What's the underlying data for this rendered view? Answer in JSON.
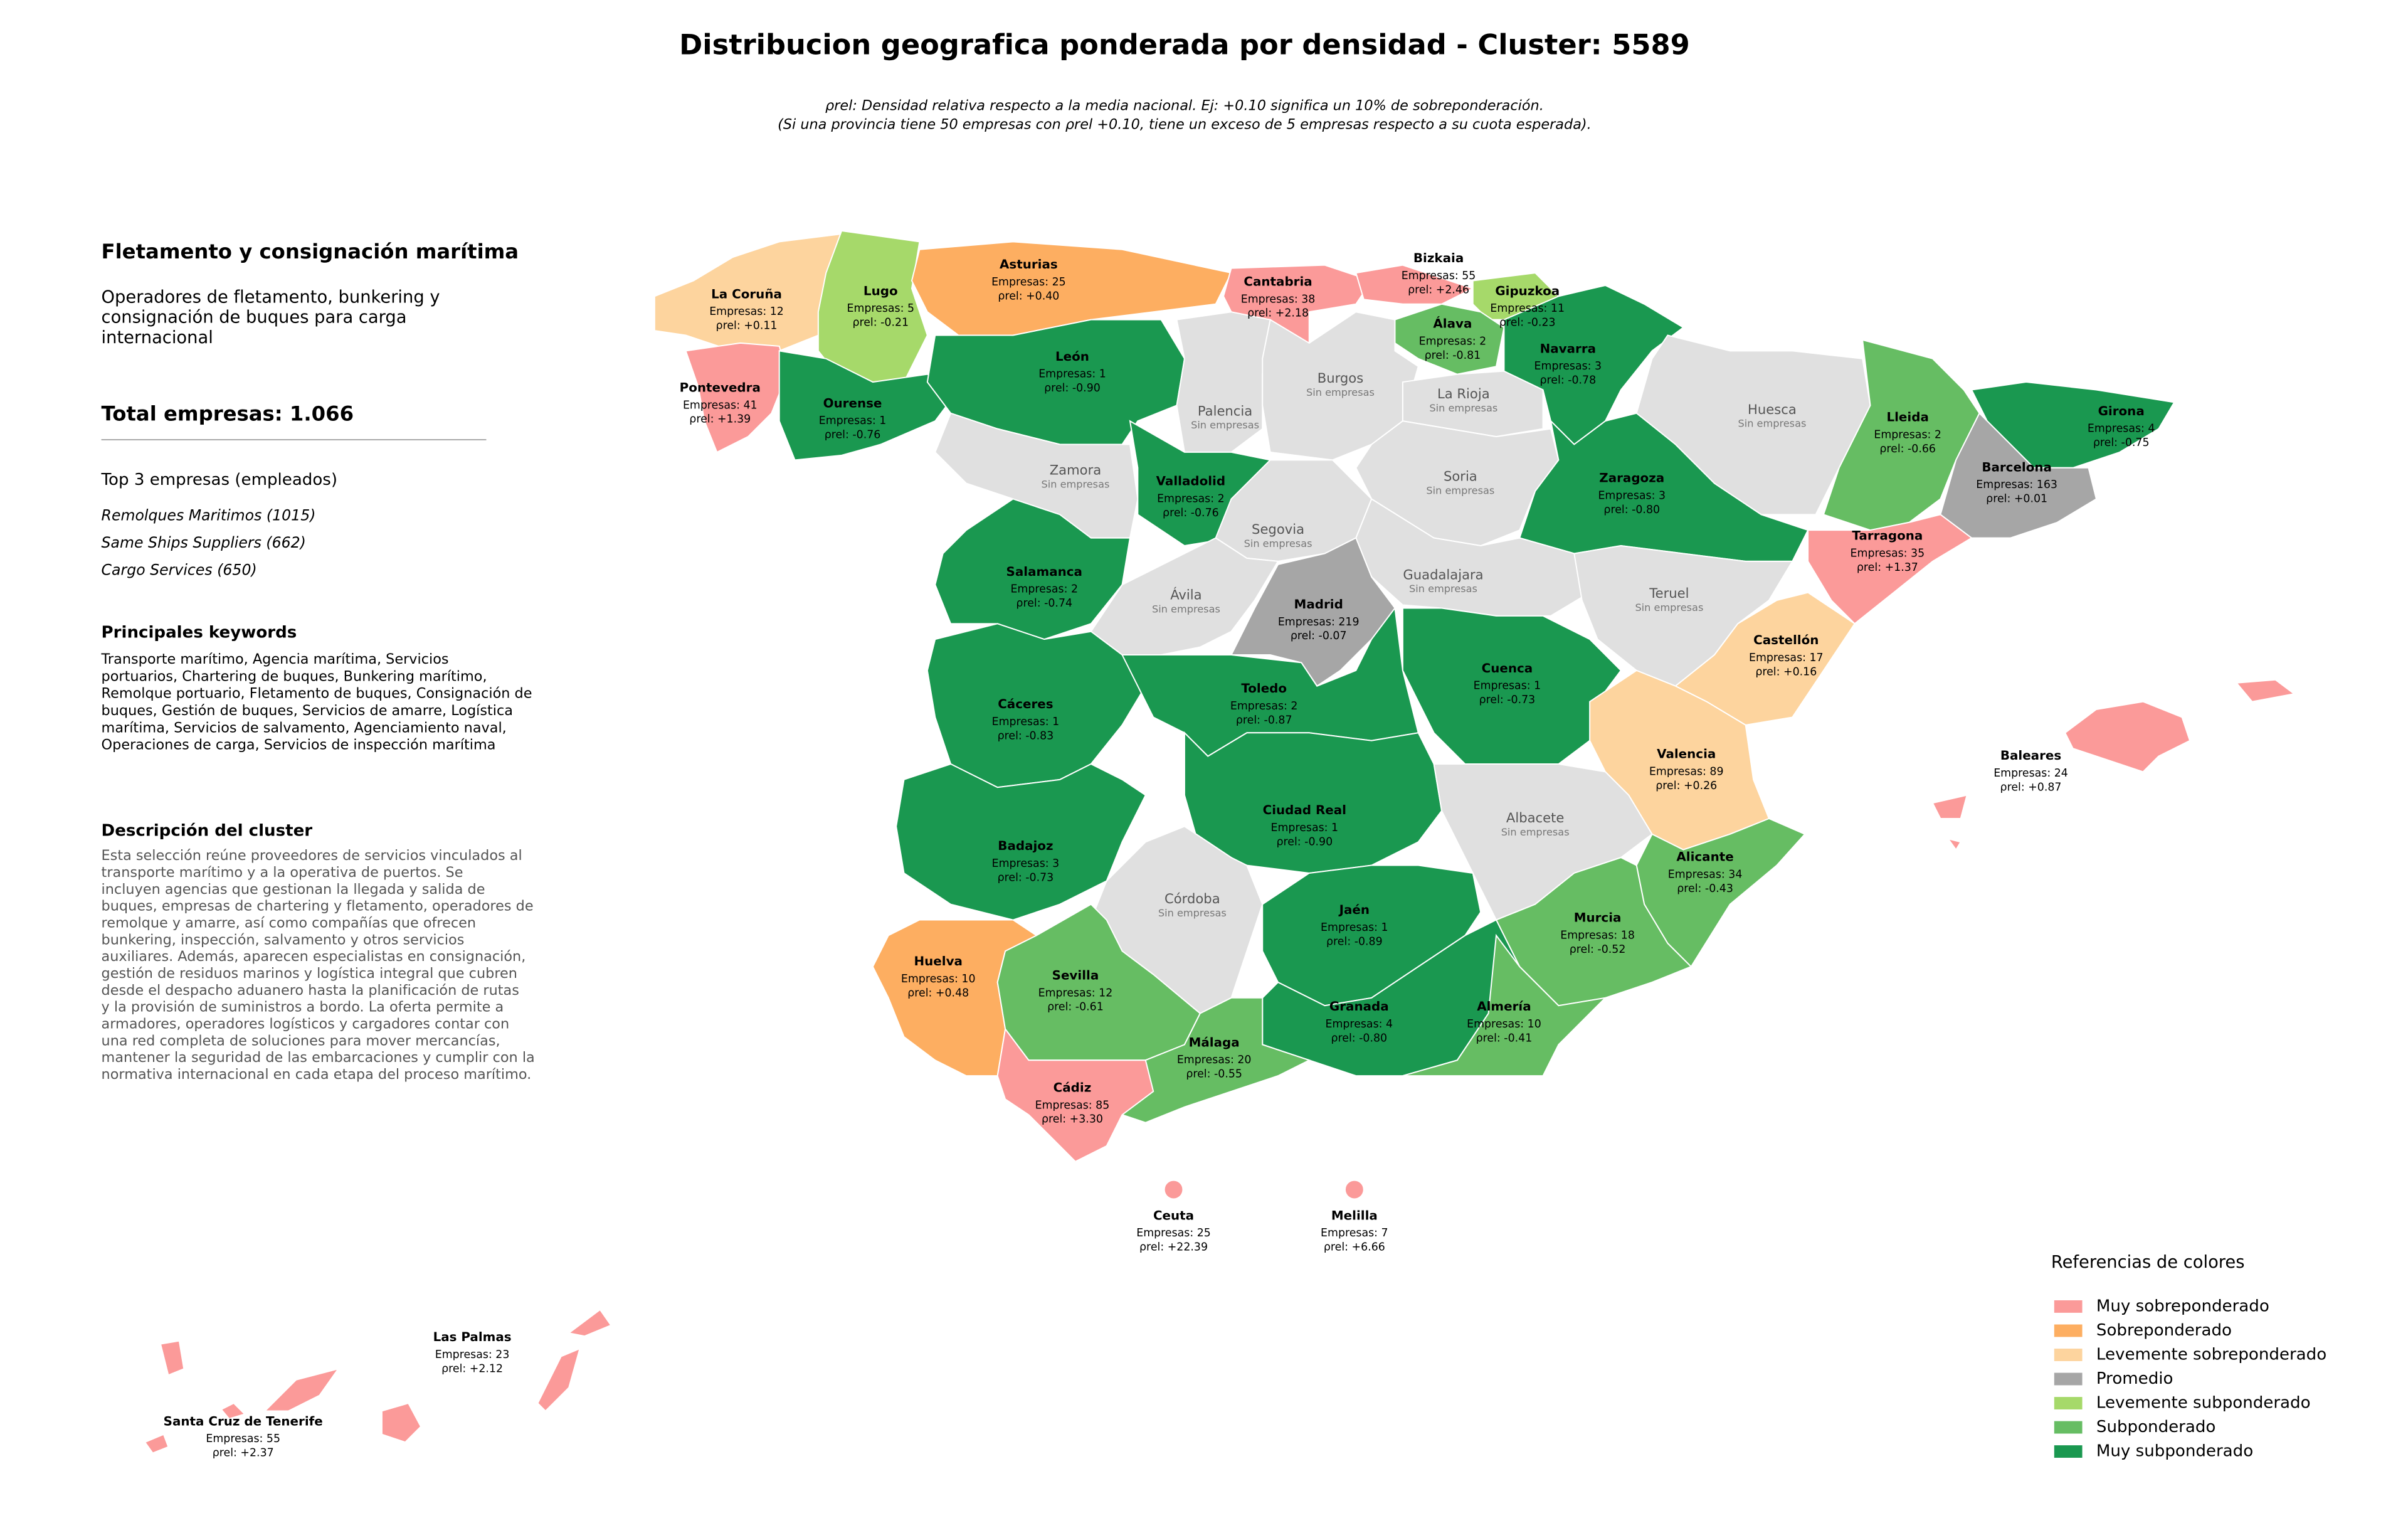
{
  "title": "Distribucion geografica ponderada por densidad - Cluster: 5589",
  "subtitle": [
    "ρrel: Densidad relativa respecto a la media nacional. Ej: +0.10 significa un 10% de sobreponderación.",
    "(Si una provincia tiene 50 empresas con ρrel +0.10, tiene un exceso de 5 empresas respecto a su cuota esperada)."
  ],
  "panel": {
    "heading": "Fletamento y consignación marítima",
    "summary": [
      "Operadores de fletamento, bunkering y",
      "consignación de buques para carga",
      "internacional"
    ],
    "total": "Total empresas: 1.066",
    "top_title": "Top 3 empresas (empleados)",
    "top": [
      "Remolques Maritimos (1015)",
      "Same Ships Suppliers (662)",
      "Cargo Services (650)"
    ],
    "keywords_title": "Principales keywords",
    "keywords": [
      "Transporte marítimo, Agencia marítima, Servicios",
      "portuarios, Chartering de buques, Bunkering marítimo,",
      "Remolque portuario, Fletamento de buques, Consignación de",
      "buques, Gestión de buques, Servicios de amarre, Logística",
      "marítima, Servicios de salvamento, Agenciamiento naval,",
      "Operaciones de carga, Servicios de inspección marítima"
    ],
    "description_title": "Descripción del cluster",
    "description": [
      "Esta selección reúne proveedores de servicios vinculados al",
      "transporte marítimo y a la operativa de puertos. Se",
      "incluyen agencias que gestionan la llegada y salida de",
      "buques, empresas de chartering y fletamento, operadores de",
      "remolque y amarre, así como compañías que ofrecen",
      "bunkering, inspección, salvamento y otros servicios",
      "auxiliares. Además, aparecen especialistas en consignación,",
      "gestión de residuos marinos y logística integral que cubren",
      "desde el despacho aduanero hasta la planificación de rutas",
      "y la provisión de suministros a bordo. La oferta permite a",
      "armadores, operadores logísticos y cargadores contar con",
      "una red completa de soluciones para mover mercancías,",
      "mantener la seguridad de las embarcaciones y cumplir con la",
      "normativa internacional en cada etapa del proceso marítimo."
    ]
  },
  "provinces": [
    {
      "name": "La Coruña",
      "empresas": "Empresas: 12",
      "rho": "ρrel: +0.11",
      "color": "#fdd49e"
    },
    {
      "name": "Lugo",
      "empresas": "Empresas: 5",
      "rho": "ρrel: -0.21",
      "color": "#a6d96a"
    },
    {
      "name": "Asturias",
      "empresas": "Empresas: 25",
      "rho": "ρrel: +0.40",
      "color": "#fdae61"
    },
    {
      "name": "Cantabria",
      "empresas": "Empresas: 38",
      "rho": "ρrel: +2.18",
      "color": "#fb9a99"
    },
    {
      "name": "Bizkaia",
      "empresas": "Empresas: 55",
      "rho": "ρrel: +2.46",
      "color": "#fb9a99"
    },
    {
      "name": "Gipuzkoa",
      "empresas": "Empresas: 11",
      "rho": "ρrel: -0.23",
      "color": "#a6d96a"
    },
    {
      "name": "Álava",
      "empresas": "Empresas: 2",
      "rho": "ρrel: -0.81",
      "color": "#66bd63"
    },
    {
      "name": "Pontevedra",
      "empresas": "Empresas: 41",
      "rho": "ρrel: +1.39",
      "color": "#fb9a99"
    },
    {
      "name": "Ourense",
      "empresas": "Empresas: 1",
      "rho": "ρrel: -0.76",
      "color": "#1a9850"
    },
    {
      "name": "León",
      "empresas": "Empresas: 1",
      "rho": "ρrel: -0.90",
      "color": "#1a9850"
    },
    {
      "name": "Palencia",
      "note": "Sin empresas",
      "color": "#e0e0e0"
    },
    {
      "name": "Burgos",
      "note": "Sin empresas",
      "color": "#e0e0e0"
    },
    {
      "name": "La Rioja",
      "note": "Sin empresas",
      "color": "#e0e0e0"
    },
    {
      "name": "Navarra",
      "empresas": "Empresas: 3",
      "rho": "ρrel: -0.78",
      "color": "#1a9850"
    },
    {
      "name": "Huesca",
      "note": "Sin empresas",
      "color": "#e0e0e0"
    },
    {
      "name": "Lleida",
      "empresas": "Empresas: 2",
      "rho": "ρrel: -0.66",
      "color": "#66bd63"
    },
    {
      "name": "Girona",
      "empresas": "Empresas: 4",
      "rho": "ρrel: -0.75",
      "color": "#1a9850"
    },
    {
      "name": "Barcelona",
      "empresas": "Empresas: 163",
      "rho": "ρrel: +0.01",
      "color": "#a6a6a6"
    },
    {
      "name": "Zamora",
      "note": "Sin empresas",
      "color": "#e0e0e0"
    },
    {
      "name": "Valladolid",
      "empresas": "Empresas: 2",
      "rho": "ρrel: -0.76",
      "color": "#1a9850"
    },
    {
      "name": "Soria",
      "note": "Sin empresas",
      "color": "#e0e0e0"
    },
    {
      "name": "Zaragoza",
      "empresas": "Empresas: 3",
      "rho": "ρrel: -0.80",
      "color": "#1a9850"
    },
    {
      "name": "Tarragona",
      "empresas": "Empresas: 35",
      "rho": "ρrel: +1.37",
      "color": "#fb9a99"
    },
    {
      "name": "Segovia",
      "note": "Sin empresas",
      "color": "#e0e0e0"
    },
    {
      "name": "Salamanca",
      "empresas": "Empresas: 2",
      "rho": "ρrel: -0.74",
      "color": "#1a9850"
    },
    {
      "name": "Ávila",
      "note": "Sin empresas",
      "color": "#e0e0e0"
    },
    {
      "name": "Guadalajara",
      "note": "Sin empresas",
      "color": "#e0e0e0"
    },
    {
      "name": "Madrid",
      "empresas": "Empresas: 219",
      "rho": "ρrel: -0.07",
      "color": "#a6a6a6"
    },
    {
      "name": "Teruel",
      "note": "Sin empresas",
      "color": "#e0e0e0"
    },
    {
      "name": "Castellón",
      "empresas": "Empresas: 17",
      "rho": "ρrel: +0.16",
      "color": "#fdd49e"
    },
    {
      "name": "Cáceres",
      "empresas": "Empresas: 1",
      "rho": "ρrel: -0.83",
      "color": "#1a9850"
    },
    {
      "name": "Toledo",
      "empresas": "Empresas: 2",
      "rho": "ρrel: -0.87",
      "color": "#1a9850"
    },
    {
      "name": "Cuenca",
      "empresas": "Empresas: 1",
      "rho": "ρrel: -0.73",
      "color": "#1a9850"
    },
    {
      "name": "Valencia",
      "empresas": "Empresas: 89",
      "rho": "ρrel: +0.26",
      "color": "#fdd49e"
    },
    {
      "name": "Baleares",
      "empresas": "Empresas: 24",
      "rho": "ρrel: +0.87",
      "color": "#fb9a99"
    },
    {
      "name": "Ciudad Real",
      "empresas": "Empresas: 1",
      "rho": "ρrel: -0.90",
      "color": "#1a9850"
    },
    {
      "name": "Albacete",
      "note": "Sin empresas",
      "color": "#e0e0e0"
    },
    {
      "name": "Badajoz",
      "empresas": "Empresas: 3",
      "rho": "ρrel: -0.73",
      "color": "#1a9850"
    },
    {
      "name": "Alicante",
      "empresas": "Empresas: 34",
      "rho": "ρrel: -0.43",
      "color": "#66bd63"
    },
    {
      "name": "Córdoba",
      "note": "Sin empresas",
      "color": "#e0e0e0"
    },
    {
      "name": "Jaén",
      "empresas": "Empresas: 1",
      "rho": "ρrel: -0.89",
      "color": "#1a9850"
    },
    {
      "name": "Murcia",
      "empresas": "Empresas: 18",
      "rho": "ρrel: -0.52",
      "color": "#66bd63"
    },
    {
      "name": "Huelva",
      "empresas": "Empresas: 10",
      "rho": "ρrel: +0.48",
      "color": "#fdae61"
    },
    {
      "name": "Sevilla",
      "empresas": "Empresas: 12",
      "rho": "ρrel: -0.61",
      "color": "#66bd63"
    },
    {
      "name": "Granada",
      "empresas": "Empresas: 4",
      "rho": "ρrel: -0.80",
      "color": "#1a9850"
    },
    {
      "name": "Almería",
      "empresas": "Empresas: 10",
      "rho": "ρrel: -0.41",
      "color": "#66bd63"
    },
    {
      "name": "Málaga",
      "empresas": "Empresas: 20",
      "rho": "ρrel: -0.55",
      "color": "#66bd63"
    },
    {
      "name": "Cádiz",
      "empresas": "Empresas: 85",
      "rho": "ρrel: +3.30",
      "color": "#fb9a99"
    },
    {
      "name": "Ceuta",
      "empresas": "Empresas: 25",
      "rho": "ρrel: +22.39",
      "color": "#fb9a99"
    },
    {
      "name": "Melilla",
      "empresas": "Empresas: 7",
      "rho": "ρrel: +6.66",
      "color": "#fb9a99"
    },
    {
      "name": "Las Palmas",
      "empresas": "Empresas: 23",
      "rho": "ρrel: +2.12",
      "color": "#fb9a99"
    },
    {
      "name": "Santa Cruz de Tenerife",
      "empresas": "Empresas: 55",
      "rho": "ρrel: +2.37",
      "color": "#fb9a99"
    }
  ],
  "legend": {
    "title": "Referencias de colores",
    "items": [
      {
        "label": "Muy sobreponderado",
        "color": "#fb9a99"
      },
      {
        "label": "Sobreponderado",
        "color": "#fdae61"
      },
      {
        "label": "Levemente sobreponderado",
        "color": "#fdd49e"
      },
      {
        "label": "Promedio",
        "color": "#a6a6a6"
      },
      {
        "label": "Levemente subponderado",
        "color": "#a6d96a"
      },
      {
        "label": "Subponderado",
        "color": "#66bd63"
      },
      {
        "label": "Muy subponderado",
        "color": "#1a9850"
      }
    ]
  }
}
